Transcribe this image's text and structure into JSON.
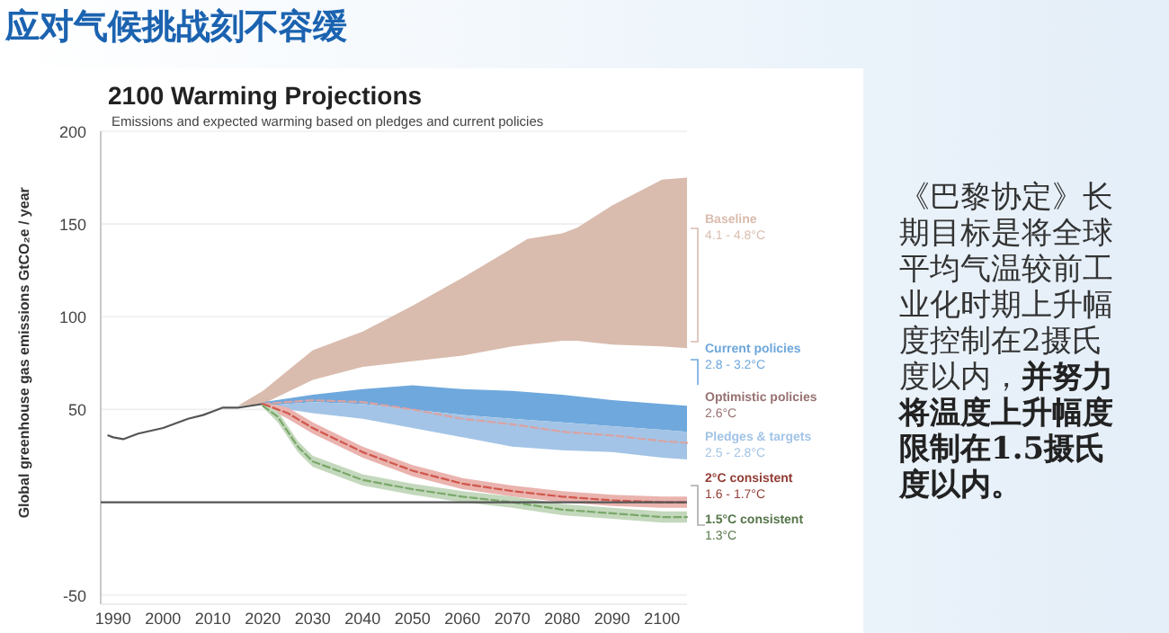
{
  "chart_data": {
    "type": "area",
    "title": "2100 Warming Projections",
    "subtitle": "Emissions and expected warming based on pledges and current policies",
    "ylabel": "Global greenhouse gas emissions GtCO₂e / year",
    "xlim": [
      1987.5,
      2105
    ],
    "ylim": [
      -55,
      200
    ],
    "xticks": [
      1990,
      2000,
      2010,
      2020,
      2030,
      2040,
      2050,
      2060,
      2070,
      2080,
      2090,
      2100
    ],
    "yticks": [
      -50,
      50,
      100,
      150,
      200
    ],
    "grid": "y",
    "legend": false,
    "series": [
      {
        "type": "line",
        "color": "#555555",
        "x": [
          1989,
          1990,
          1992,
          1995,
          2000,
          2005,
          2008,
          2010,
          2012,
          2015,
          2020
        ],
        "values": [
          36,
          35,
          34,
          37,
          40,
          45,
          47,
          49,
          51,
          51,
          53
        ]
      },
      {
        "type": "area",
        "name": "Baseline",
        "color": "#d9bcae",
        "x": [
          2015,
          2020,
          2030,
          2040,
          2050,
          2060,
          2070,
          2073,
          2080,
          2083,
          2090,
          2100,
          2105
        ],
        "values": [
          null,
          null,
          null,
          null,
          null,
          null,
          null,
          null,
          null,
          null,
          null,
          null,
          null
        ],
        "lower": [
          52,
          53,
          66,
          73,
          76,
          79,
          84,
          85,
          87,
          87,
          85,
          84,
          83
        ],
        "upper": [
          52,
          60,
          82,
          92,
          106,
          121,
          137,
          142,
          145,
          148,
          160,
          174,
          175
        ]
      },
      {
        "type": "area",
        "name": "Current policies",
        "color": "#6fa8dc",
        "x": [
          2020,
          2030,
          2040,
          2050,
          2060,
          2070,
          2080,
          2090,
          2100,
          2105
        ],
        "values": [
          null,
          null,
          null,
          null,
          null,
          null,
          null,
          null,
          null,
          null
        ],
        "lower": [
          52,
          54,
          53,
          50,
          47,
          45,
          43,
          41,
          39,
          38
        ],
        "upper": [
          54,
          58,
          61,
          63,
          61,
          60,
          58,
          55,
          53,
          52
        ]
      },
      {
        "type": "line",
        "name": "Optimistic policies",
        "color": "#d9a3a3",
        "line_style": "dashed",
        "x": [
          2020,
          2030,
          2040,
          2050,
          2060,
          2070,
          2080,
          2090,
          2100,
          2105
        ],
        "values": [
          53,
          55,
          54,
          50,
          45,
          42,
          38,
          36,
          33,
          32
        ]
      },
      {
        "type": "area",
        "name": "Pledges & targets",
        "color": "#a3c4e6",
        "x": [
          2020,
          2030,
          2040,
          2050,
          2060,
          2070,
          2080,
          2090,
          2100,
          2105
        ],
        "values": [
          null,
          null,
          null,
          null,
          null,
          null,
          null,
          null,
          null,
          null
        ],
        "lower": [
          52,
          48,
          45,
          40,
          35,
          30,
          28,
          27,
          24,
          23
        ],
        "upper": [
          52,
          54,
          53,
          50,
          47,
          45,
          43,
          41,
          39,
          38
        ]
      },
      {
        "type": "line",
        "name": "2°C consistent",
        "color": "#d0574c",
        "line_style": "dashed",
        "x": [
          2020,
          2025,
          2030,
          2040,
          2050,
          2060,
          2070,
          2080,
          2090,
          2100,
          2105
        ],
        "values": [
          53,
          48,
          40,
          27,
          17,
          10,
          6,
          3,
          1,
          0,
          0
        ],
        "lower": [
          52,
          45,
          37,
          24,
          14,
          7,
          3,
          0,
          -2,
          -3,
          -3
        ],
        "upper": [
          54,
          51,
          43,
          30,
          20,
          13,
          9,
          6,
          4,
          3,
          3
        ]
      },
      {
        "type": "line",
        "name": "1.5°C consistent",
        "color": "#7aa86a",
        "line_style": "dashed",
        "x": [
          2020,
          2023,
          2027,
          2030,
          2035,
          2040,
          2050,
          2060,
          2070,
          2080,
          2090,
          2100,
          2105
        ],
        "values": [
          52,
          46,
          30,
          22,
          17,
          12,
          7,
          3,
          0,
          -4,
          -6,
          -8,
          -8
        ],
        "lower": [
          51,
          43,
          27,
          19,
          14,
          9,
          4,
          0,
          -3,
          -7,
          -9,
          -11,
          -11
        ],
        "upper": [
          53,
          49,
          33,
          25,
          20,
          15,
          10,
          6,
          3,
          -1,
          -3,
          -5,
          -5
        ]
      }
    ],
    "annotations": [
      "应对气候挑战刻不容缓",
      "《巴黎协定》长期目标是将全球平均气温较前工业化时期上升幅度控制在2摄氏度以内，**并努力将温度上升幅度限制在1.5摄氏度以内。**",
      "4.1 - 4.8°C",
      "2.8 - 3.2°C",
      "2.6°C",
      "2.5 - 2.8°C",
      "1.6 - 1.7°C",
      "1.3°C"
    ]
  }
}
